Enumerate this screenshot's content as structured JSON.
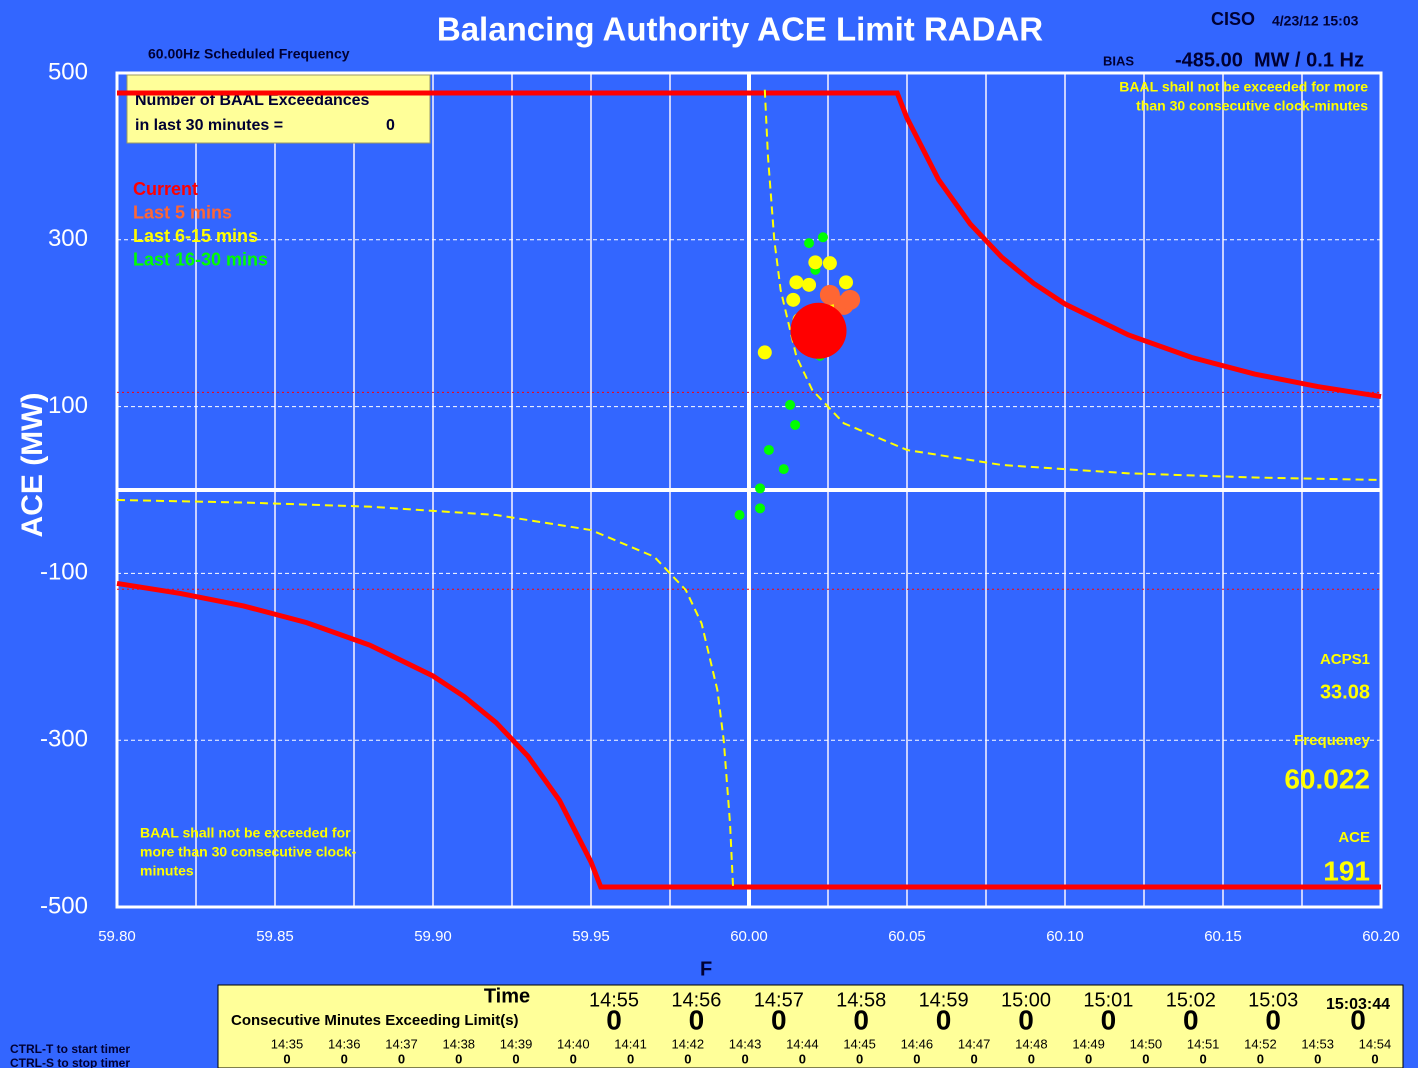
{
  "chart_data": {
    "type": "scatter",
    "title": "Balancing Authority ACE Limit RADAR",
    "balancing_authority": "CISO",
    "timestamp": "4/23/12 15:03",
    "scheduled_frequency": "60.00Hz Scheduled Frequency",
    "bias_label": "BIAS",
    "bias": "-485.00  MW / 0.1 Hz",
    "y_label": "ACE (MW)",
    "x_label": "F",
    "xlim": [
      59.8,
      60.2
    ],
    "ylim": [
      -500,
      500
    ],
    "xticks": [
      {
        "value": 59.8,
        "label": "59.80"
      },
      {
        "value": 59.85,
        "label": "59.85"
      },
      {
        "value": 59.9,
        "label": "59.90"
      },
      {
        "value": 59.95,
        "label": "59.95"
      },
      {
        "value": 60.0,
        "label": "60.00"
      },
      {
        "value": 60.05,
        "label": "60.05"
      },
      {
        "value": 60.1,
        "label": "60.10"
      },
      {
        "value": 60.15,
        "label": "60.15"
      },
      {
        "value": 60.2,
        "label": "60.20"
      }
    ],
    "xgrid_minor": [
      59.825,
      59.875,
      59.925,
      59.975,
      60.025,
      60.075,
      60.125,
      60.175
    ],
    "yticks": [
      500,
      300,
      100,
      -100,
      -300,
      -500
    ],
    "axis_lines": {
      "x": 60.0,
      "y": 0
    },
    "grid": true,
    "background": "#3366ff",
    "exceedance_box": {
      "lines": [
        "Number of BAAL  Exceedances",
        "in last 30 minutes ="
      ],
      "value": 0
    },
    "annotations": [
      {
        "lines": [
          "BAAL shall not be exceeded for more",
          "than 30 consecutive clock-minutes"
        ],
        "corner": "top-right"
      },
      {
        "lines": [
          "BAAL shall not be exceeded for",
          "more than 30 consecutive clock-",
          "minutes"
        ],
        "corner": "bottom-left"
      }
    ],
    "series": [
      {
        "type": "line",
        "color": "#ff0000",
        "width": 5,
        "x": [
          59.8,
          60.0469,
          60.05,
          60.06,
          60.07,
          60.08,
          60.09,
          60.1,
          60.12,
          60.14,
          60.16,
          60.18,
          60.2
        ],
        "values": [
          476,
          476,
          446,
          372,
          319,
          279,
          248,
          223,
          186,
          159,
          139,
          124,
          112
        ]
      },
      {
        "type": "line",
        "color": "#ff0000",
        "width": 5,
        "x": [
          59.8,
          59.82,
          59.84,
          59.86,
          59.88,
          59.9,
          59.91,
          59.92,
          59.93,
          59.94,
          59.95,
          59.9531,
          60.2
        ],
        "values": [
          -112,
          -124,
          -139,
          -159,
          -186,
          -223,
          -248,
          -279,
          -319,
          -372,
          -446,
          -476,
          -476
        ]
      },
      {
        "type": "line",
        "color": "#ffff00",
        "width": 2,
        "dash": "8,5",
        "x": [
          60.005,
          60.006,
          60.008,
          60.01,
          60.015,
          60.02,
          60.03,
          60.05,
          60.08,
          60.12,
          60.16,
          60.2
        ],
        "values": [
          480,
          400,
          300,
          240,
          160,
          120,
          80,
          48,
          30,
          20,
          15,
          12
        ]
      },
      {
        "type": "line",
        "color": "#ffff00",
        "width": 2,
        "dash": "8,5",
        "x": [
          59.8,
          59.84,
          59.88,
          59.92,
          59.95,
          59.97,
          59.98,
          59.985,
          59.99,
          59.992,
          59.994,
          59.995
        ],
        "values": [
          -12,
          -15,
          -20,
          -30,
          -48,
          -80,
          -120,
          -160,
          -240,
          -300,
          -400,
          -480
        ]
      },
      {
        "type": "line",
        "color": "#ff0000",
        "width": 1,
        "dash": "2,3",
        "x": [
          59.8,
          60.2
        ],
        "values": [
          117,
          117
        ]
      },
      {
        "type": "line",
        "color": "#ff0000",
        "width": 1,
        "dash": "2,3",
        "x": [
          59.8,
          60.2
        ],
        "values": [
          -119,
          -119
        ]
      },
      {
        "type": "scatter",
        "name": "Last 16-30 mins",
        "color": "#00ff00",
        "size": 5,
        "x": [
          60.0234,
          60.019,
          60.021,
          60.0225,
          60.013,
          60.0146,
          60.0063,
          60.011,
          60.0035,
          60.0035,
          59.997,
          60.017
        ],
        "values": [
          303,
          296,
          264,
          161,
          102,
          78,
          48,
          25,
          2,
          -22,
          -30,
          187
        ]
      },
      {
        "type": "scatter",
        "name": "Last 6-15 mins",
        "color": "#ffff00",
        "size": 7,
        "x": [
          60.005,
          60.015,
          60.019,
          60.0256,
          60.0307,
          60.014,
          60.026,
          60.016,
          60.021
        ],
        "values": [
          165,
          249,
          246,
          272,
          249,
          228,
          216,
          204,
          273
        ]
      },
      {
        "type": "scatter",
        "name": "Last 5 mins",
        "color": "#ff6633",
        "size": 10,
        "x": [
          60.0256,
          60.024,
          60.03,
          60.032,
          60.017
        ],
        "values": [
          234,
          192,
          222,
          228,
          201
        ]
      },
      {
        "type": "scatter",
        "name": "Current",
        "color": "#ff0000",
        "size": 28,
        "x": [
          60.022
        ],
        "values": [
          191
        ]
      }
    ],
    "legend_order": [
      9,
      8,
      7,
      6
    ],
    "legend_colors": [
      "#ff0000",
      "#ff6633",
      "#ffff00",
      "#00ff00"
    ]
  },
  "panel": {
    "acps1_label": "ACPS1",
    "acps1": 33.08,
    "frequency_label": "Frequency",
    "frequency": 60.022,
    "ace_label": "ACE",
    "ace": 191
  },
  "timer_table": {
    "time_label": "Time",
    "count_label": "Consecutive Minutes Exceeding Limit(s)",
    "times": [
      "14:55",
      "14:56",
      "14:57",
      "14:58",
      "14:59",
      "15:00",
      "15:01",
      "15:02",
      "15:03"
    ],
    "counts": [
      0,
      0,
      0,
      0,
      0,
      0,
      0,
      0,
      0
    ],
    "current_time": "15:03:44",
    "current_count": 0,
    "history_times": [
      "14:35",
      "14:36",
      "14:37",
      "14:38",
      "14:39",
      "14:40",
      "14:41",
      "14:42",
      "14:43",
      "14:44",
      "14:45",
      "14:46",
      "14:47",
      "14:48",
      "14:49",
      "14:50",
      "14:51",
      "14:52",
      "14:53",
      "14:54"
    ],
    "history_counts": [
      0,
      0,
      0,
      0,
      0,
      0,
      0,
      0,
      0,
      0,
      0,
      0,
      0,
      0,
      0,
      0,
      0,
      0,
      0,
      0
    ]
  },
  "instructions": [
    "CTRL-T to start timer",
    "CTRL-S to stop timer"
  ]
}
